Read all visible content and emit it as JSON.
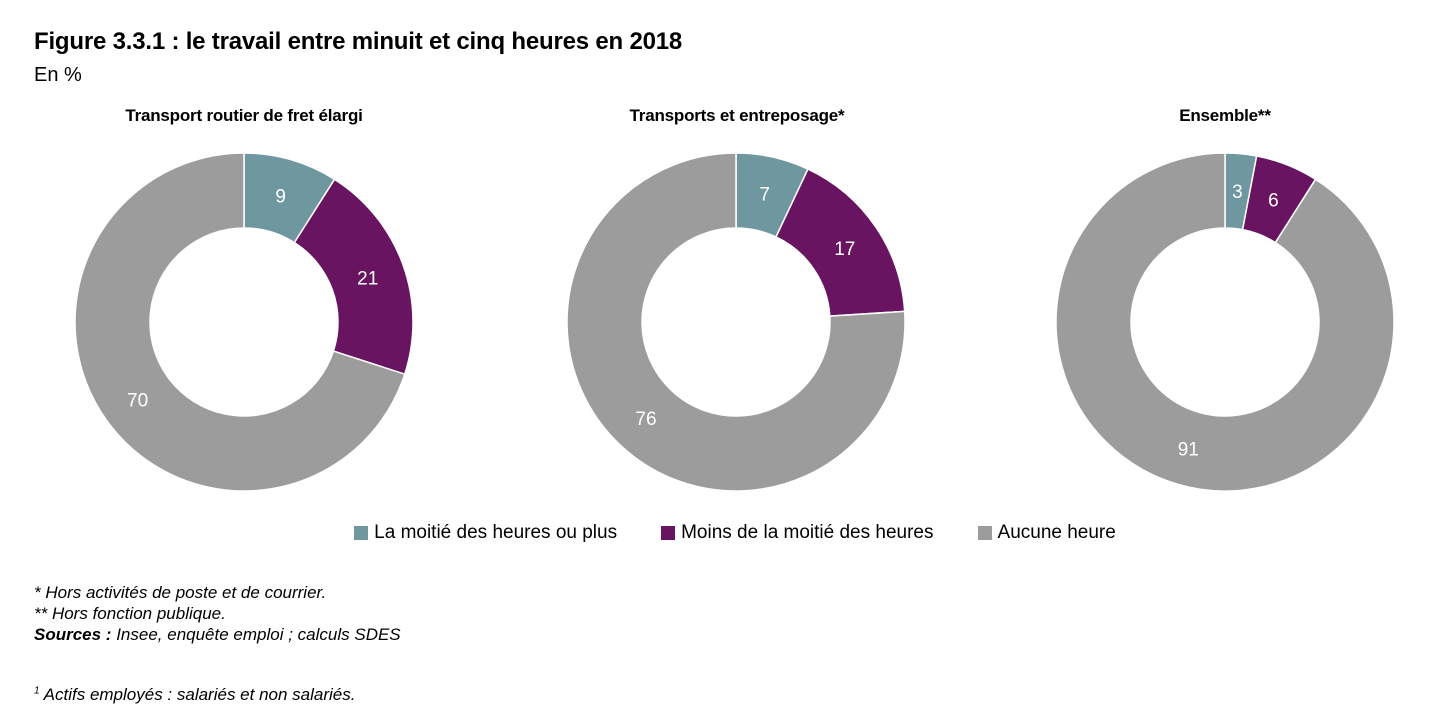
{
  "figure": {
    "title": "Figure 3.3.1 : le travail entre minuit et cinq heures en 2018",
    "unit": "En %"
  },
  "chart_data": [
    {
      "type": "donut",
      "title": "Transport routier de fret élargi",
      "categories": [
        "La moitié des heures ou plus",
        "Moins de la moitié des heures",
        "Aucune heure"
      ],
      "values": [
        9,
        21,
        70
      ]
    },
    {
      "type": "donut",
      "title": "Transports et entreposage*",
      "categories": [
        "La moitié des heures ou plus",
        "Moins de la moitié des heures",
        "Aucune heure"
      ],
      "values": [
        7,
        17,
        76
      ]
    },
    {
      "type": "donut",
      "title": "Ensemble**",
      "categories": [
        "La moitié des heures ou plus",
        "Moins de la moitié des heures",
        "Aucune heure"
      ],
      "values": [
        3,
        6,
        91
      ]
    }
  ],
  "legend": [
    {
      "label": "La moitié des heures ou plus",
      "color": "#6f97a0"
    },
    {
      "label": "Moins de la moitié des heures",
      "color": "#681461"
    },
    {
      "label": "Aucune heure",
      "color": "#9c9c9c"
    }
  ],
  "notes": {
    "note1": "* Hors activités de poste et de courrier.",
    "note2": "** Hors fonction publique.",
    "sources_label": "Sources :",
    "sources_text": " Insee, enquête emploi ; calculs SDES",
    "footnote_mark": "1",
    "footnote_text": " Actifs employés : salariés et non salariés."
  }
}
